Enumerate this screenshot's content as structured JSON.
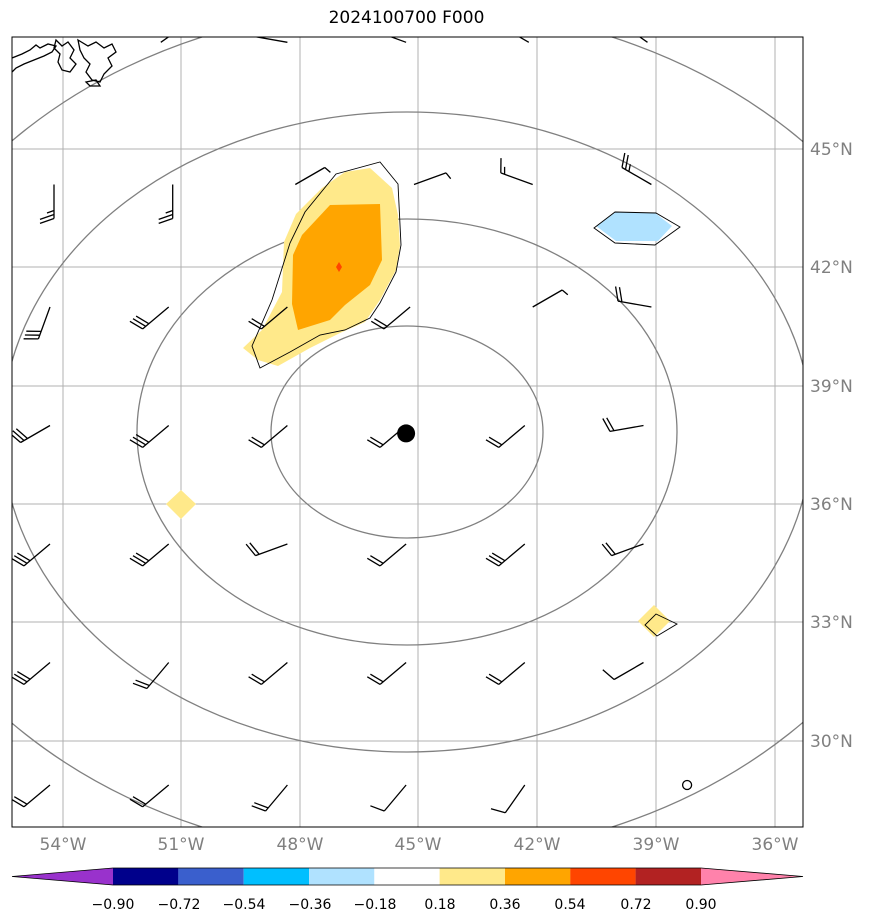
{
  "title": "2024100700 F000",
  "map": {
    "lat_labels": [
      "45°N",
      "42°N",
      "39°N",
      "36°N",
      "33°N",
      "30°N"
    ],
    "lon_labels": [
      "54°W",
      "51°W",
      "48°W",
      "45°W",
      "42°W",
      "39°W",
      "36°W"
    ],
    "center_marker": {
      "lon": -45.3,
      "lat": 37.8
    }
  },
  "colorbar": {
    "tick_labels": [
      "−0.90",
      "−0.72",
      "−0.54",
      "−0.36",
      "−0.18",
      "0.18",
      "0.36",
      "0.54",
      "0.72",
      "0.90"
    ],
    "colors": [
      "#9932CC",
      "#00008B",
      "#3A5FCD",
      "#00BFFF",
      "#B0E2FF",
      "#FFFFFF",
      "#FFE98A",
      "#FFA500",
      "#FF4500",
      "#B22222",
      "#FF82AB"
    ]
  },
  "wind_barbs": {
    "rows": [
      {
        "lat": 47.7,
        "barbs": [
          {
            "lon": -51.5,
            "dir": 55,
            "type": "half"
          },
          {
            "lon": -48.3,
            "dir": 280,
            "type": "one"
          },
          {
            "lon": -45.3,
            "dir": 290,
            "type": "one-half"
          },
          {
            "lon": -42.2,
            "dir": 300,
            "type": "two-half"
          },
          {
            "lon": -39.2,
            "dir": 305,
            "type": "three"
          }
        ]
      },
      {
        "lat": 44.1,
        "barbs": [
          {
            "lon": -54.2,
            "dir": 180,
            "type": "two-half"
          },
          {
            "lon": -51.2,
            "dir": 180,
            "type": "two-half"
          },
          {
            "lon": -48.1,
            "dir": 60,
            "type": "half"
          },
          {
            "lon": -45.1,
            "dir": 70,
            "type": "half"
          },
          {
            "lon": -42.1,
            "dir": 290,
            "type": "one-half"
          },
          {
            "lon": -39.1,
            "dir": 300,
            "type": "two-half"
          }
        ]
      },
      {
        "lat": 41.0,
        "barbs": [
          {
            "lon": -54.3,
            "dir": 200,
            "type": "three"
          },
          {
            "lon": -51.3,
            "dir": 230,
            "type": "three"
          },
          {
            "lon": -48.3,
            "dir": 230,
            "type": "two"
          },
          {
            "lon": -45.2,
            "dir": 230,
            "type": "two"
          },
          {
            "lon": -42.1,
            "dir": 60,
            "type": "half"
          },
          {
            "lon": -39.1,
            "dir": 280,
            "type": "two"
          }
        ]
      },
      {
        "lat": 38.0,
        "barbs": [
          {
            "lon": -54.3,
            "dir": 240,
            "type": "three"
          },
          {
            "lon": -51.3,
            "dir": 230,
            "type": "three"
          },
          {
            "lon": -48.3,
            "dir": 230,
            "type": "two"
          },
          {
            "lon": -45.3,
            "dir": 230,
            "type": "two"
          },
          {
            "lon": -42.3,
            "dir": 230,
            "type": "two"
          },
          {
            "lon": -39.3,
            "dir": 260,
            "type": "two"
          }
        ]
      },
      {
        "lat": 35.0,
        "barbs": [
          {
            "lon": -54.3,
            "dir": 230,
            "type": "three"
          },
          {
            "lon": -51.3,
            "dir": 230,
            "type": "three"
          },
          {
            "lon": -48.3,
            "dir": 250,
            "type": "two"
          },
          {
            "lon": -45.3,
            "dir": 230,
            "type": "two"
          },
          {
            "lon": -42.3,
            "dir": 230,
            "type": "three"
          },
          {
            "lon": -39.3,
            "dir": 250,
            "type": "two"
          }
        ]
      },
      {
        "lat": 32.0,
        "barbs": [
          {
            "lon": -54.3,
            "dir": 230,
            "type": "three"
          },
          {
            "lon": -51.3,
            "dir": 220,
            "type": "two"
          },
          {
            "lon": -48.3,
            "dir": 230,
            "type": "two"
          },
          {
            "lon": -45.3,
            "dir": 230,
            "type": "two"
          },
          {
            "lon": -42.3,
            "dir": 230,
            "type": "two"
          },
          {
            "lon": -39.3,
            "dir": 240,
            "type": "one"
          }
        ]
      },
      {
        "lat": 28.9,
        "barbs": [
          {
            "lon": -54.3,
            "dir": 230,
            "type": "two"
          },
          {
            "lon": -51.3,
            "dir": 230,
            "type": "two"
          },
          {
            "lon": -48.3,
            "dir": 220,
            "type": "two"
          },
          {
            "lon": -45.3,
            "dir": 220,
            "type": "one"
          },
          {
            "lon": -42.3,
            "dir": 215,
            "type": "one"
          },
          {
            "lon": -38.2,
            "dir": 0,
            "type": "calm"
          }
        ]
      }
    ]
  }
}
